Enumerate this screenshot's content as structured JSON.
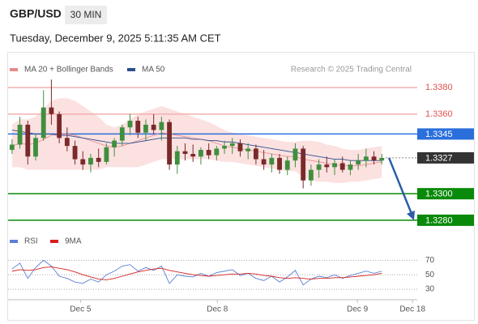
{
  "header": {
    "symbol": "GBP/USD",
    "timeframe": "30 MIN",
    "datetime": "Tuesday, December 9, 2025 5:11:35 AM CET"
  },
  "chart_data": [
    {
      "type": "candlestick",
      "credit": "Research © 2025 Trading Central",
      "xlim": [
        0,
        52
      ],
      "ylim": [
        1.3272,
        1.3388
      ],
      "up_color": "#3f8f3f",
      "down_color": "#7a2a2a",
      "open": [
        1.3333,
        1.3337,
        1.3352,
        1.3328,
        1.3342,
        1.3365,
        1.336,
        1.3342,
        1.3336,
        1.3326,
        1.3322,
        1.3327,
        1.3324,
        1.3335,
        1.334,
        1.335,
        1.3355,
        1.3346,
        1.3352,
        1.3348,
        1.3354,
        1.3322,
        1.3332,
        1.333,
        1.3328,
        1.3333,
        1.3329,
        1.3334,
        1.3336,
        1.3338,
        1.3332,
        1.3334,
        1.3326,
        1.3322,
        1.3327,
        1.3318,
        1.3325,
        1.3334,
        1.331,
        1.3318,
        1.3322,
        1.332,
        1.3323,
        1.3318,
        1.3322,
        1.3325,
        1.3328,
        1.3325
      ],
      "high": [
        1.3341,
        1.3358,
        1.3355,
        1.3345,
        1.3378,
        1.3386,
        1.3362,
        1.335,
        1.334,
        1.3332,
        1.333,
        1.3334,
        1.3338,
        1.3342,
        1.3352,
        1.336,
        1.3358,
        1.3356,
        1.336,
        1.3358,
        1.3356,
        1.3336,
        1.3338,
        1.3337,
        1.3335,
        1.3338,
        1.3336,
        1.334,
        1.3342,
        1.3341,
        1.3338,
        1.3337,
        1.3333,
        1.333,
        1.333,
        1.3328,
        1.3338,
        1.3336,
        1.3322,
        1.3326,
        1.3328,
        1.3326,
        1.3328,
        1.3325,
        1.333,
        1.3334,
        1.3332,
        1.333
      ],
      "low": [
        1.333,
        1.3334,
        1.3322,
        1.3325,
        1.334,
        1.3352,
        1.3338,
        1.3332,
        1.3322,
        1.3318,
        1.3316,
        1.332,
        1.3322,
        1.3328,
        1.3336,
        1.3344,
        1.3342,
        1.334,
        1.3345,
        1.334,
        1.3318,
        1.3315,
        1.3325,
        1.3324,
        1.3322,
        1.3326,
        1.3325,
        1.333,
        1.333,
        1.3328,
        1.3326,
        1.3322,
        1.3318,
        1.3316,
        1.3315,
        1.3314,
        1.332,
        1.3304,
        1.3306,
        1.3312,
        1.3316,
        1.3314,
        1.3316,
        1.3314,
        1.3318,
        1.332,
        1.3322,
        1.3322
      ],
      "close": [
        1.3337,
        1.3352,
        1.3328,
        1.3342,
        1.3365,
        1.336,
        1.3342,
        1.3336,
        1.3326,
        1.3322,
        1.3327,
        1.3324,
        1.3335,
        1.334,
        1.335,
        1.3355,
        1.3346,
        1.3352,
        1.3348,
        1.3354,
        1.3322,
        1.3332,
        1.333,
        1.3328,
        1.3333,
        1.3329,
        1.3334,
        1.3336,
        1.3338,
        1.3332,
        1.3334,
        1.3326,
        1.3322,
        1.3327,
        1.3318,
        1.3325,
        1.3334,
        1.331,
        1.3318,
        1.3322,
        1.332,
        1.3323,
        1.3318,
        1.3322,
        1.3325,
        1.3328,
        1.3325,
        1.3327
      ],
      "series": [
        {
          "name": "MA 20 + Bollinger Bands",
          "color": "#e88a8a",
          "band_color": "#fbdada",
          "values": [
            1.3336,
            1.3338,
            1.3337,
            1.3338,
            1.3341,
            1.3344,
            1.3345,
            1.3345,
            1.3344,
            1.3342,
            1.334,
            1.3338,
            1.3336,
            1.3335,
            1.3336,
            1.3338,
            1.334,
            1.3342,
            1.3344,
            1.3346,
            1.3345,
            1.3344,
            1.3343,
            1.3342,
            1.3341,
            1.334,
            1.3338,
            1.3336,
            1.3335,
            1.3334,
            1.3333,
            1.3332,
            1.3331,
            1.333,
            1.3329,
            1.3328,
            1.3328,
            1.3326,
            1.3325,
            1.3324,
            1.3323,
            1.3322,
            1.3321,
            1.3321,
            1.3321,
            1.3322,
            1.3323,
            1.3324
          ],
          "upper": [
            1.3352,
            1.3356,
            1.3356,
            1.3358,
            1.3364,
            1.337,
            1.3372,
            1.3372,
            1.337,
            1.3366,
            1.3362,
            1.3358,
            1.3352,
            1.335,
            1.3352,
            1.3356,
            1.336,
            1.3362,
            1.3364,
            1.3366,
            1.3364,
            1.3362,
            1.336,
            1.3358,
            1.3356,
            1.3354,
            1.3351,
            1.3348,
            1.3346,
            1.3345,
            1.3344,
            1.3343,
            1.3342,
            1.3341,
            1.334,
            1.3339,
            1.3339,
            1.334,
            1.334,
            1.3339,
            1.3337,
            1.3336,
            1.3334,
            1.3333,
            1.3333,
            1.3334,
            1.3335,
            1.3336
          ],
          "lower": [
            1.332,
            1.332,
            1.3318,
            1.3318,
            1.3318,
            1.3318,
            1.3318,
            1.3318,
            1.3318,
            1.3318,
            1.3318,
            1.3318,
            1.332,
            1.332,
            1.332,
            1.332,
            1.332,
            1.3322,
            1.3324,
            1.3326,
            1.3326,
            1.3326,
            1.3326,
            1.3326,
            1.3326,
            1.3326,
            1.3325,
            1.3324,
            1.3324,
            1.3323,
            1.3322,
            1.3321,
            1.332,
            1.3319,
            1.3318,
            1.3317,
            1.3317,
            1.3312,
            1.331,
            1.3309,
            1.3309,
            1.3308,
            1.3308,
            1.3309,
            1.3309,
            1.331,
            1.3311,
            1.3312
          ]
        },
        {
          "name": "MA 50",
          "color": "#2d4f8e",
          "values": [
            1.3348,
            1.3347,
            1.3346,
            1.3345,
            1.3345,
            1.3345,
            1.3344,
            1.3344,
            1.3343,
            1.3342,
            1.3341,
            1.334,
            1.3339,
            1.3338,
            1.3338,
            1.3338,
            1.3339,
            1.334,
            1.3341,
            1.3342,
            1.3342,
            1.3342,
            1.3342,
            1.3341,
            1.3341,
            1.334,
            1.334,
            1.3339,
            1.3339,
            1.3338,
            1.3337,
            1.3336,
            1.3335,
            1.3334,
            1.3333,
            1.3332,
            1.3331,
            1.333,
            1.3329,
            1.3328,
            1.3327,
            1.3326,
            1.3326,
            1.3325,
            1.3325,
            1.3325,
            1.3325,
            1.3325
          ]
        }
      ],
      "levels": [
        {
          "value": 1.338,
          "label": "1.3380",
          "color": "#e05050",
          "line_color": "#f3b0b0",
          "style": "text"
        },
        {
          "value": 1.336,
          "label": "1.3360",
          "color": "#e05050",
          "line_color": "#f3b0b0",
          "style": "text"
        },
        {
          "value": 1.3345,
          "label": "1.3345",
          "color": "#2a6fdb",
          "line_color": "#2a6fdb",
          "style": "box"
        },
        {
          "value": 1.3327,
          "label": "1.3327",
          "color": "#333333",
          "line_color": "#888888",
          "style": "box",
          "dashed": true
        },
        {
          "value": 1.33,
          "label": "1.3300",
          "color": "#0a8a0a",
          "line_color": "#0a8a0a",
          "style": "box"
        },
        {
          "value": 1.328,
          "label": "1.3280",
          "color": "#0a8a0a",
          "line_color": "#0a8a0a",
          "style": "box"
        }
      ]
    },
    {
      "type": "line",
      "xlim": [
        0,
        52
      ],
      "xticks": [
        {
          "value": 9.2,
          "label": "Dec 5"
        },
        {
          "value": 26.6,
          "label": "Dec 8"
        },
        {
          "value": 44.4,
          "label": "Dec 9"
        },
        {
          "value": 51.4,
          "label": "Dec 18"
        }
      ],
      "ylim": [
        20,
        76
      ],
      "yticks": [
        30,
        50,
        70
      ],
      "grid": true,
      "series": [
        {
          "name": "RSI",
          "color": "#5b7fd6",
          "values": [
            58,
            66,
            45,
            60,
            70,
            62,
            48,
            45,
            40,
            38,
            44,
            40,
            50,
            55,
            62,
            64,
            55,
            60,
            56,
            62,
            38,
            50,
            48,
            47,
            52,
            48,
            53,
            55,
            57,
            49,
            52,
            45,
            42,
            48,
            40,
            47,
            56,
            36,
            44,
            48,
            46,
            50,
            45,
            49,
            52,
            55,
            52,
            55
          ]
        },
        {
          "name": "9MA",
          "color": "#d62020",
          "values": [
            55,
            57,
            56,
            57,
            60,
            61,
            59,
            57,
            54,
            50,
            47,
            44,
            43,
            45,
            48,
            51,
            54,
            56,
            58,
            59,
            56,
            54,
            52,
            50,
            49,
            48,
            49,
            50,
            51,
            51,
            52,
            51,
            49,
            48,
            46,
            45,
            46,
            45,
            44,
            45,
            45,
            46,
            46,
            47,
            48,
            49,
            50,
            52
          ]
        }
      ]
    }
  ]
}
